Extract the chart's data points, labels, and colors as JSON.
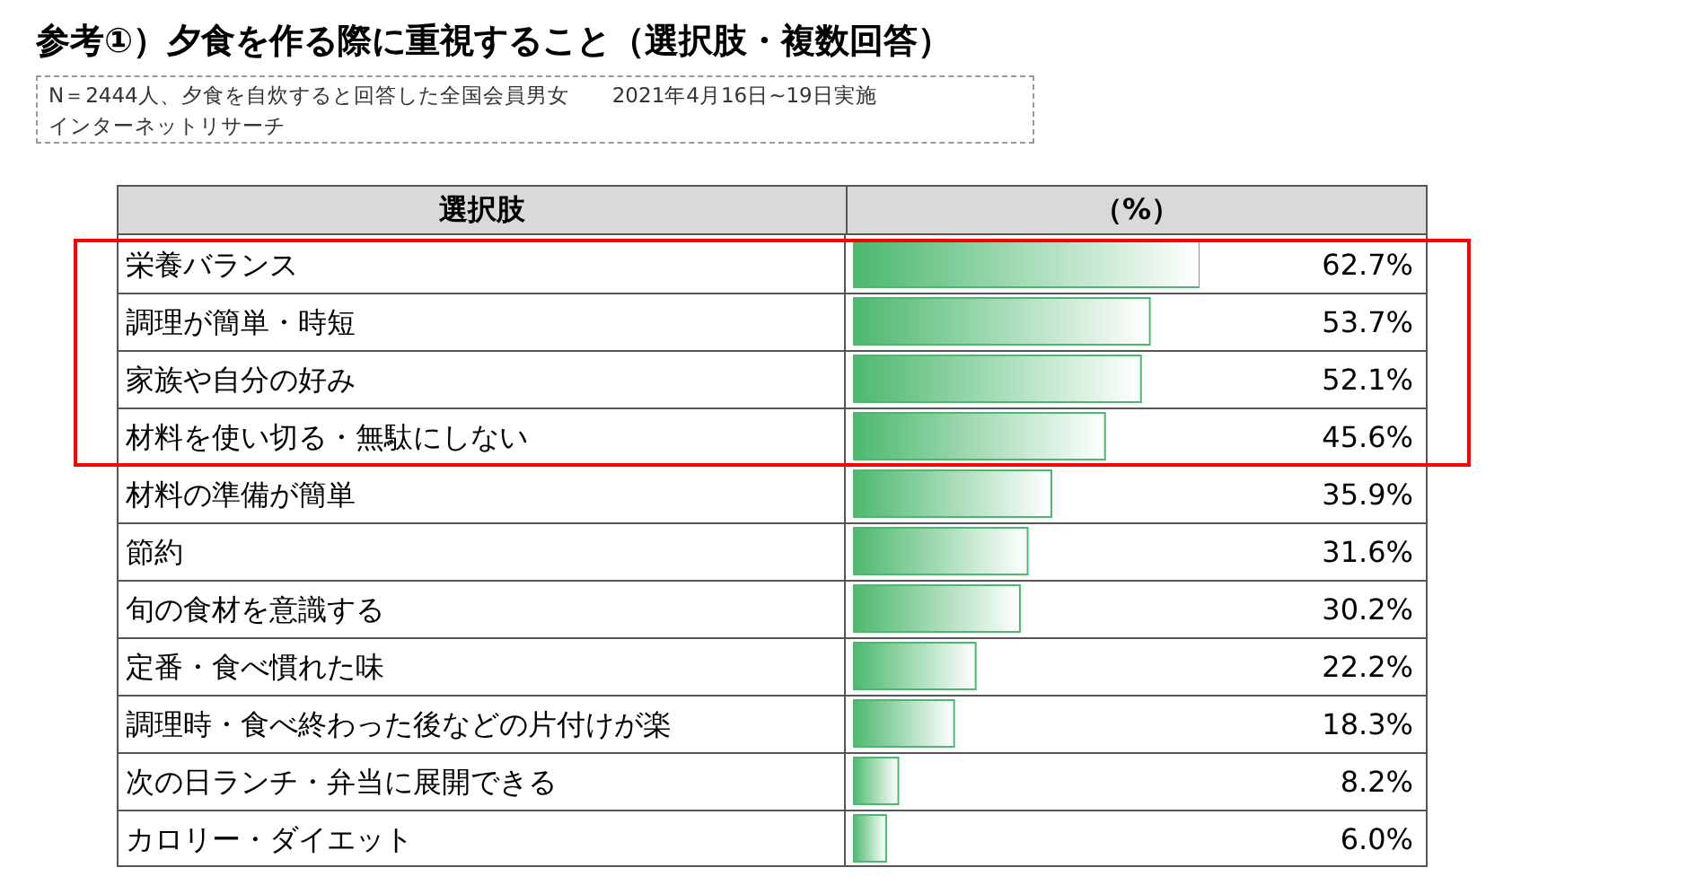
{
  "chart_data": {
    "type": "bar",
    "orientation": "horizontal",
    "title": "参考①）夕食を作る際に重視すること（選択肢・複数回答）",
    "annotations": [
      "N＝2444人、夕食を自炊すると回答した全国会員男女　　2021年4月16日~19日実施",
      "インターネットリサーチ"
    ],
    "ylabel": "選択肢",
    "xlabel": "（%）",
    "categories": [
      "栄養バランス",
      "調理が簡単・時短",
      "家族や自分の好み",
      "材料を使い切る・無駄にしない",
      "材料の準備が簡単",
      "節約",
      "旬の食材を意識する",
      "定番・食べ慣れた味",
      "調理時・食べ終わった後などの片付けが楽",
      "次の日ランチ・弁当に展開できる",
      "カロリー・ダイエット"
    ],
    "values": [
      62.7,
      53.7,
      52.1,
      45.6,
      35.9,
      31.6,
      30.2,
      22.2,
      18.3,
      8.2,
      6.0
    ],
    "value_labels": [
      "62.7%",
      "53.7%",
      "52.1%",
      "45.6%",
      "35.9%",
      "31.6%",
      "30.2%",
      "22.2%",
      "18.3%",
      "8.2%",
      "6.0%"
    ],
    "color": "#4cb86e"
  }
}
